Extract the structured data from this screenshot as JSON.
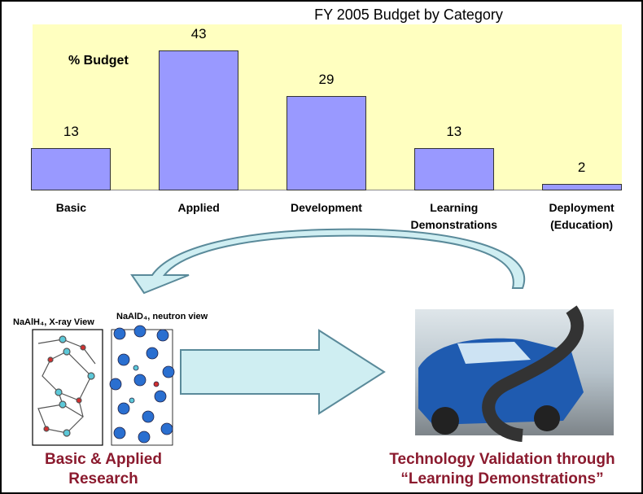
{
  "chart_data": {
    "type": "bar",
    "title": "FY 2005 Budget by Category",
    "y_label": "% Budget",
    "categories": [
      "Basic",
      "Applied",
      "Development",
      "Learning Demonstrations",
      "Deployment (Education)"
    ],
    "values": [
      13,
      43,
      29,
      13,
      2
    ],
    "color": "#9999ff"
  },
  "figures": {
    "xray_label": "NaAlH₄, X-ray View",
    "neutron_label": "NaAlD₄, neutron view",
    "left_caption": "Basic & Applied Research",
    "right_caption": "Technology Validation through “Learning Demonstrations”"
  }
}
